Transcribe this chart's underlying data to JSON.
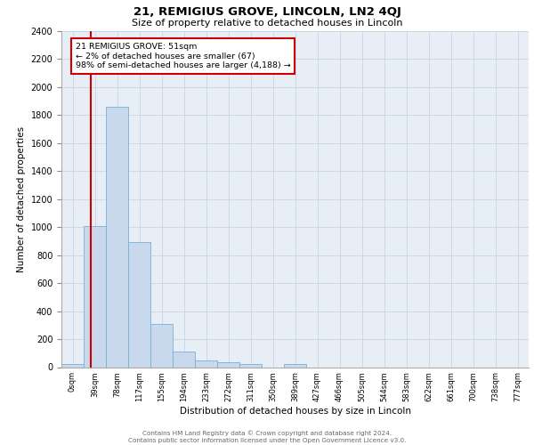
{
  "title1": "21, REMIGIUS GROVE, LINCOLN, LN2 4QJ",
  "title2": "Size of property relative to detached houses in Lincoln",
  "xlabel": "Distribution of detached houses by size in Lincoln",
  "ylabel": "Number of detached properties",
  "bar_color": "#c9d9ed",
  "bar_edge_color": "#7aafd4",
  "grid_color": "#c8d4e3",
  "background_color": "#e8eef6",
  "bin_labels": [
    "0sqm",
    "39sqm",
    "78sqm",
    "117sqm",
    "155sqm",
    "194sqm",
    "233sqm",
    "272sqm",
    "311sqm",
    "350sqm",
    "389sqm",
    "427sqm",
    "466sqm",
    "505sqm",
    "544sqm",
    "583sqm",
    "622sqm",
    "661sqm",
    "700sqm",
    "738sqm",
    "777sqm"
  ],
  "bar_heights": [
    20,
    1005,
    1860,
    893,
    310,
    110,
    50,
    35,
    20,
    0,
    20,
    0,
    0,
    0,
    0,
    0,
    0,
    0,
    0,
    0,
    0
  ],
  "ylim": [
    0,
    2400
  ],
  "yticks": [
    0,
    200,
    400,
    600,
    800,
    1000,
    1200,
    1400,
    1600,
    1800,
    2000,
    2200,
    2400
  ],
  "annotation_text": "21 REMIGIUS GROVE: 51sqm\n← 2% of detached houses are smaller (67)\n98% of semi-detached houses are larger (4,188) →",
  "annotation_box_color": "#cc0000",
  "line_color": "#cc0000",
  "footer_line1": "Contains HM Land Registry data © Crown copyright and database right 2024.",
  "footer_line2": "Contains public sector information licensed under the Open Government Licence v3.0."
}
